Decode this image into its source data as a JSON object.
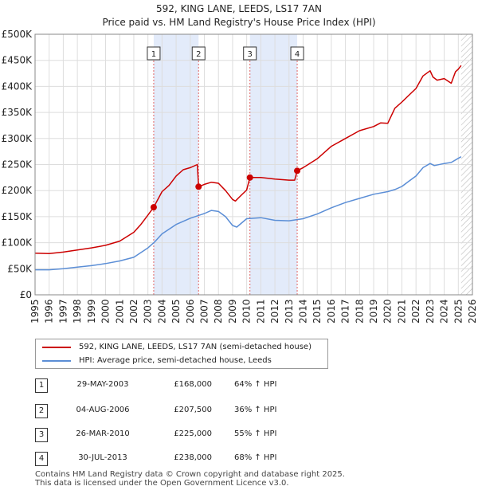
{
  "title_line1": "592, KING LANE, LEEDS, LS17 7AN",
  "title_line2": "Price paid vs. HM Land Registry's House Price Index (HPI)",
  "colors": {
    "red": "#cc0000",
    "blue": "#5b8ed6",
    "shade": "#e3ebfa",
    "grid": "#dddddd"
  },
  "chart_data": {
    "type": "line",
    "xlim": [
      1995,
      2026
    ],
    "ylim": [
      0,
      500000
    ],
    "yticks": [
      0,
      50000,
      100000,
      150000,
      200000,
      250000,
      300000,
      350000,
      400000,
      450000,
      500000
    ],
    "ytick_labels": [
      "£0",
      "£50K",
      "£100K",
      "£150K",
      "£200K",
      "£250K",
      "£300K",
      "£350K",
      "£400K",
      "£450K",
      "£500K"
    ],
    "xtick_labels": [
      "1995",
      "1996",
      "1997",
      "1998",
      "1999",
      "2000",
      "2001",
      "2002",
      "2003",
      "2004",
      "2005",
      "2006",
      "2007",
      "2008",
      "2009",
      "2010",
      "2011",
      "2012",
      "2013",
      "2014",
      "2015",
      "2016",
      "2017",
      "2018",
      "2019",
      "2020",
      "2021",
      "2022",
      "2023",
      "2024",
      "2025",
      "2026"
    ],
    "shaded_regions": [
      [
        2003.41,
        2006.59
      ],
      [
        2010.23,
        2013.58
      ]
    ],
    "hatched_from": 2025.2,
    "series": [
      {
        "name": "592, KING LANE, LEEDS, LS17 7AN (semi-detached house)",
        "color": "#cc0000",
        "x": [
          1995,
          1996,
          1997,
          1998,
          1999,
          2000,
          2001,
          2002,
          2002.5,
          2003,
          2003.41,
          2004,
          2004.5,
          2005,
          2005.5,
          2006,
          2006.5,
          2006.59,
          2007,
          2007.5,
          2008,
          2008.5,
          2009,
          2009.2,
          2009.5,
          2010,
          2010.23,
          2011,
          2012,
          2013,
          2013.4,
          2013.58,
          2014,
          2015,
          2016,
          2017,
          2018,
          2019,
          2019.5,
          2020,
          2020.5,
          2021,
          2021.5,
          2022,
          2022.5,
          2023,
          2023.2,
          2023.5,
          2024,
          2024.5,
          2024.8,
          2025,
          2025.2
        ],
        "y": [
          80000,
          79000,
          82000,
          86000,
          90000,
          95000,
          103000,
          120000,
          135000,
          153000,
          168000,
          198000,
          210000,
          228000,
          240000,
          244000,
          250000,
          207500,
          212000,
          216000,
          214000,
          200000,
          183000,
          180000,
          188000,
          201000,
          225000,
          225000,
          222000,
          220000,
          220000,
          238000,
          244000,
          261000,
          285000,
          300000,
          315000,
          323000,
          330000,
          329000,
          358000,
          370000,
          383000,
          396000,
          420000,
          430000,
          418000,
          412000,
          415000,
          406000,
          428000,
          433000,
          440000
        ]
      },
      {
        "name": "HPI: Average price, semi-detached house, Leeds",
        "color": "#5b8ed6",
        "x": [
          1995,
          1996,
          1997,
          1998,
          1999,
          2000,
          2001,
          2002,
          2003,
          2003.5,
          2004,
          2005,
          2006,
          2007,
          2007.5,
          2008,
          2008.5,
          2009,
          2009.3,
          2010,
          2011,
          2012,
          2013,
          2014,
          2015,
          2016,
          2017,
          2018,
          2019,
          2020,
          2020.5,
          2021,
          2021.5,
          2022,
          2022.5,
          2023,
          2023.3,
          2024,
          2024.5,
          2025,
          2025.2
        ],
        "y": [
          48000,
          48000,
          50000,
          53000,
          56000,
          60000,
          65000,
          72000,
          90000,
          102000,
          117000,
          135000,
          147000,
          156000,
          162000,
          160000,
          150000,
          133000,
          130000,
          146000,
          148000,
          143000,
          142000,
          146000,
          155000,
          167000,
          177000,
          185000,
          193000,
          198000,
          202000,
          208000,
          218000,
          228000,
          244000,
          252000,
          248000,
          252000,
          254000,
          262000,
          265000
        ]
      }
    ],
    "sales": [
      {
        "label": "1",
        "x": 2003.41,
        "y": 168000
      },
      {
        "label": "2",
        "x": 2006.59,
        "y": 207500
      },
      {
        "label": "3",
        "x": 2010.23,
        "y": 225000
      },
      {
        "label": "4",
        "x": 2013.58,
        "y": 238000
      }
    ]
  },
  "legend": [
    {
      "label": "592, KING LANE, LEEDS, LS17 7AN (semi-detached house)",
      "color": "#cc0000"
    },
    {
      "label": "HPI: Average price, semi-detached house, Leeds",
      "color": "#5b8ed6"
    }
  ],
  "sales_table": [
    {
      "num": "1",
      "date": "29-MAY-2003",
      "price": "£168,000",
      "hpi": "64% ↑ HPI"
    },
    {
      "num": "2",
      "date": "04-AUG-2006",
      "price": "£207,500",
      "hpi": "36% ↑ HPI"
    },
    {
      "num": "3",
      "date": "26-MAR-2010",
      "price": "£225,000",
      "hpi": "55% ↑ HPI"
    },
    {
      "num": "4",
      "date": "30-JUL-2013",
      "price": "£238,000",
      "hpi": "68% ↑ HPI"
    }
  ],
  "footer_line1": "Contains HM Land Registry data © Crown copyright and database right 2025.",
  "footer_line2": "This data is licensed under the Open Government Licence v3.0."
}
